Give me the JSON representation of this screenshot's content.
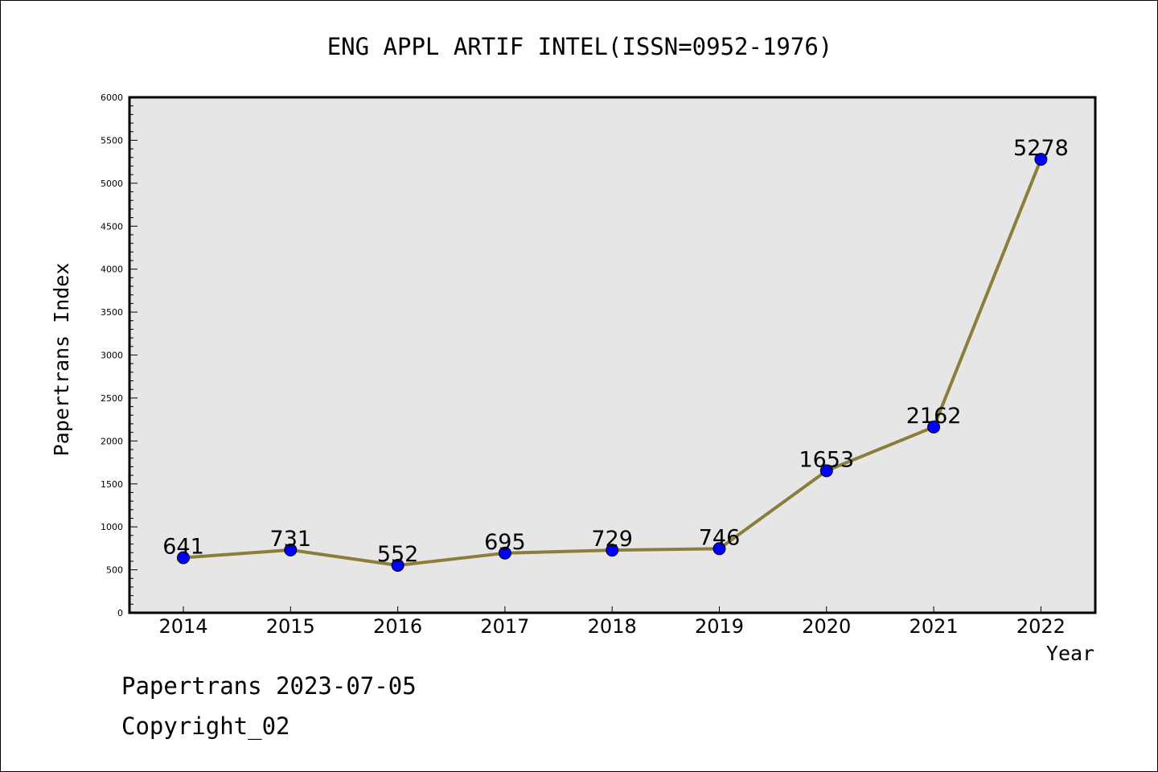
{
  "chart_data": {
    "type": "line",
    "title": "ENG APPL ARTIF INTEL(ISSN=0952-1976)",
    "xlabel": "Year",
    "ylabel": "Papertrans Index",
    "categories": [
      "2014",
      "2015",
      "2016",
      "2017",
      "2018",
      "2019",
      "2020",
      "2021",
      "2022"
    ],
    "series": [
      {
        "values": [
          641,
          731,
          552,
          695,
          729,
          746,
          1653,
          2162,
          5278
        ]
      }
    ],
    "data_labels": [
      "641",
      "731",
      "552",
      "695",
      "729",
      "746",
      "1653",
      "2162",
      "5278"
    ],
    "ylim": [
      0,
      6000
    ],
    "ytick_labels": [
      "0",
      "500",
      "1000",
      "1500",
      "2000",
      "2500",
      "3000",
      "3500",
      "4000",
      "4500",
      "5000",
      "5500",
      "6000"
    ],
    "grid": false,
    "legend": "none",
    "colors": {
      "line": "#8b7d3a",
      "marker": "#0000ff",
      "plot_background": "#e6e6e6"
    }
  },
  "footer": {
    "line1": "Papertrans 2023-07-05",
    "line2": "Copyright_02"
  }
}
